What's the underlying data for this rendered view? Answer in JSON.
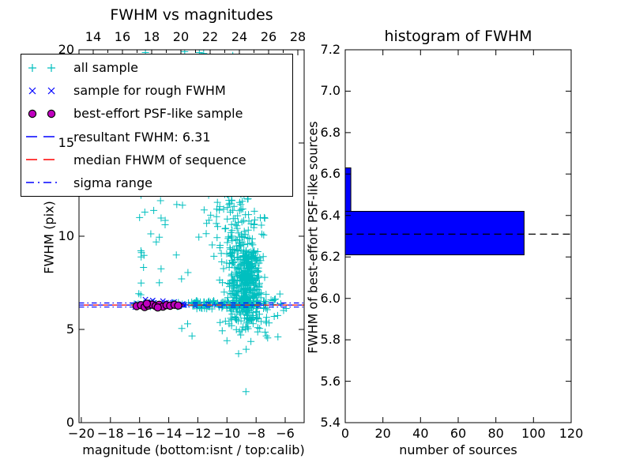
{
  "figure": {
    "background": "#ffffff"
  },
  "left_plot": {
    "title": "FWHM vs magnitudes",
    "xlabel": "magnitude (bottom:isnt / top:calib)",
    "ylabel": "FWHM (pix)",
    "bottom_tick_labels": [
      "−20",
      "−18",
      "−16",
      "−14",
      "−12",
      "−10",
      "−8",
      "−6"
    ],
    "bottom_tick_values": [
      -20,
      -18,
      -16,
      -14,
      -12,
      -10,
      -8,
      -6
    ],
    "top_tick_labels": [
      "14",
      "16",
      "18",
      "20",
      "22",
      "24",
      "26",
      "28"
    ],
    "top_tick_values": [
      14,
      16,
      18,
      20,
      22,
      24,
      26,
      28
    ],
    "top_minor_tick_values": [
      15,
      17,
      19,
      21,
      23,
      25,
      27
    ],
    "y_tick_labels": [
      "0",
      "5",
      "10",
      "15",
      "20"
    ],
    "y_tick_values": [
      0,
      5,
      10,
      15,
      20
    ],
    "xlim": [
      -20.16,
      -4.7
    ],
    "top_xlim": [
      13.03,
      28.43
    ],
    "ylim": [
      0,
      20
    ]
  },
  "right_plot": {
    "title": "histogram of FWHM",
    "xlabel": "number of sources",
    "ylabel": "FWHM of best-effort PSF-like sources",
    "x_tick_labels": [
      "0",
      "20",
      "40",
      "60",
      "80",
      "100",
      "120"
    ],
    "x_tick_values": [
      0,
      20,
      40,
      60,
      80,
      100,
      120
    ],
    "y_tick_labels": [
      "5.4",
      "5.6",
      "5.8",
      "6.0",
      "6.2",
      "6.4",
      "6.6",
      "6.8",
      "7.0",
      "7.2"
    ],
    "y_tick_values": [
      5.4,
      5.6,
      5.8,
      6.0,
      6.2,
      6.4,
      6.6,
      6.8,
      7.0,
      7.2
    ],
    "xlim": [
      0,
      120
    ],
    "ylim": [
      5.4,
      7.2
    ]
  },
  "legend": {
    "entries": [
      {
        "label": "all sample",
        "marker": "plus",
        "color": "#00bfbf"
      },
      {
        "label": "sample for rough FWHM",
        "marker": "x",
        "color": "#0000ff"
      },
      {
        "label": "best-effort PSF-like sample",
        "marker": "circle",
        "color": "#bf00bf"
      },
      {
        "label": "resultant FWHM: 6.31",
        "marker": "dashed",
        "color": "#0000ff"
      },
      {
        "label": "median FHWM of sequence",
        "marker": "dashed",
        "color": "#ff0000"
      },
      {
        "label": "sigma range",
        "marker": "dashdot",
        "color": "#0000ff"
      }
    ]
  },
  "chart_data": [
    {
      "type": "scatter",
      "title": "FWHM vs magnitudes",
      "xlabel": "magnitude (bottom:isnt / top:calib)",
      "ylabel": "FWHM (pix)",
      "xlim": [
        -20.16,
        -4.7
      ],
      "ylim": [
        0,
        20
      ],
      "grid": false,
      "legend_position": "upper left",
      "series": [
        {
          "name": "all sample",
          "marker": "+",
          "color": "#00bfbf",
          "clusters": [
            {
              "n": 24,
              "x": {
                "mu": -15.85,
                "sigma": 0.1
              },
              "y": {
                "min": 6.5,
                "max": 19.8
              }
            },
            {
              "n": 20,
              "x": {
                "min": -15.5,
                "max": -12.6
              },
              "y": {
                "min": 6.8,
                "max": 13.8
              }
            },
            {
              "n": 110,
              "x": {
                "mu": -9.4,
                "sigma": 1.15
              },
              "y": {
                "min": 8.5,
                "max": 12.8
              },
              "xclip": [
                -13.5,
                -7.4
              ]
            },
            {
              "n": 260,
              "x": {
                "mu": -8.9,
                "sigma": 0.55
              },
              "y": {
                "mu": 7.6,
                "sigma": 1.2
              },
              "yclip": [
                4.6,
                11.5
              ]
            },
            {
              "n": 160,
              "x": {
                "mu": -8.5,
                "sigma": 0.33
              },
              "y": {
                "min": 5.9,
                "max": 9.2
              }
            },
            {
              "n": 30,
              "x": {
                "mu": -9.7,
                "sigma": 0.95
              },
              "y": {
                "min": 12.8,
                "max": 16.5
              },
              "xclip": [
                -13.0,
                -7.0
              ]
            },
            {
              "n": 12,
              "x": {
                "mu": -10.2,
                "sigma": 1.4
              },
              "y": {
                "min": 16.5,
                "max": 19.9
              },
              "xclip": [
                -13.0,
                -7.0
              ]
            },
            {
              "n": 22,
              "x": {
                "min": -16.5,
                "max": -12.5
              },
              "y": {
                "min": 6.2,
                "max": 6.45
              }
            },
            {
              "n": 120,
              "x": {
                "min": -12.5,
                "max": -7.3
              },
              "y": {
                "min": 6.1,
                "max": 6.55
              }
            },
            {
              "n": 55,
              "x": {
                "mu": -8.6,
                "sigma": 0.85
              },
              "y": {
                "mu": 5.35,
                "sigma": 0.45
              },
              "yclip": [
                3.9,
                6.1
              ]
            },
            {
              "n": 12,
              "x": {
                "min": -7.6,
                "max": -5.9
              },
              "y": {
                "min": 5.6,
                "max": 7.0
              }
            }
          ],
          "extra_points": [
            [
              -15.6,
              19.85
            ],
            [
              -15.2,
              19.6
            ],
            [
              -12.9,
              19.9
            ],
            [
              -11.9,
              19.85
            ],
            [
              -11.6,
              19.8
            ],
            [
              -9.6,
              19.7
            ],
            [
              -13.1,
              5.05
            ],
            [
              -12.4,
              4.65
            ],
            [
              -9.2,
              3.7
            ],
            [
              -8.7,
              1.66
            ],
            [
              -7.3,
              4.65
            ],
            [
              -6.5,
              4.6
            ],
            [
              -12.7,
              5.3
            ],
            [
              -10.0,
              4.4
            ],
            [
              -16.0,
              11.0
            ],
            [
              -15.9,
              12.2
            ]
          ]
        },
        {
          "name": "sample for rough FWHM",
          "marker": "x",
          "color": "#0000ff",
          "clusters": [
            {
              "n": 26,
              "x": {
                "min": -16.3,
                "max": -12.9
              },
              "y": {
                "min": 6.18,
                "max": 6.48
              }
            }
          ],
          "extra_points": [
            [
              -15.6,
              6.6
            ],
            [
              -15.1,
              6.55
            ],
            [
              -14.4,
              6.52
            ]
          ]
        },
        {
          "name": "best-effort PSF-like sample",
          "marker": "o",
          "color": "#bf00bf",
          "points": [
            [
              -16.2,
              6.25
            ],
            [
              -15.9,
              6.3
            ],
            [
              -15.65,
              6.2
            ],
            [
              -15.4,
              6.28
            ],
            [
              -15.15,
              6.33
            ],
            [
              -14.9,
              6.26
            ],
            [
              -14.65,
              6.32
            ],
            [
              -14.4,
              6.22
            ],
            [
              -14.15,
              6.3
            ],
            [
              -13.9,
              6.27
            ],
            [
              -13.6,
              6.32
            ],
            [
              -13.35,
              6.28
            ],
            [
              -15.5,
              6.38
            ],
            [
              -14.75,
              6.18
            ]
          ]
        }
      ],
      "lines": [
        {
          "label": "resultant FWHM: 6.31",
          "y_values": [
            6.31
          ],
          "color": "#0000ff",
          "style": "dashed"
        },
        {
          "label": "median FHWM of sequence",
          "y_values": [
            6.31
          ],
          "color": "#ff0000",
          "style": "dashed",
          "dashoffset": 6
        },
        {
          "label": "sigma range",
          "y_values": [
            6.2,
            6.42
          ],
          "color": "#0000ff",
          "style": "dashdot"
        }
      ]
    },
    {
      "type": "bar",
      "orientation": "horizontal",
      "title": "histogram of FWHM",
      "xlabel": "number of sources",
      "ylabel": "FWHM of best-effort PSF-like sources",
      "xlim": [
        0,
        120
      ],
      "ylim": [
        5.4,
        7.2
      ],
      "grid": false,
      "bar_color": "#0000ff",
      "bar_edge_color": "#000000",
      "bins": [
        {
          "range": [
            6.21,
            6.42
          ],
          "count": 95
        },
        {
          "range": [
            6.42,
            6.63
          ],
          "count": 3
        }
      ],
      "marker_line": {
        "label": "resultant FWHM",
        "y": 6.31,
        "color": "#000000",
        "style": "dashed"
      }
    }
  ]
}
